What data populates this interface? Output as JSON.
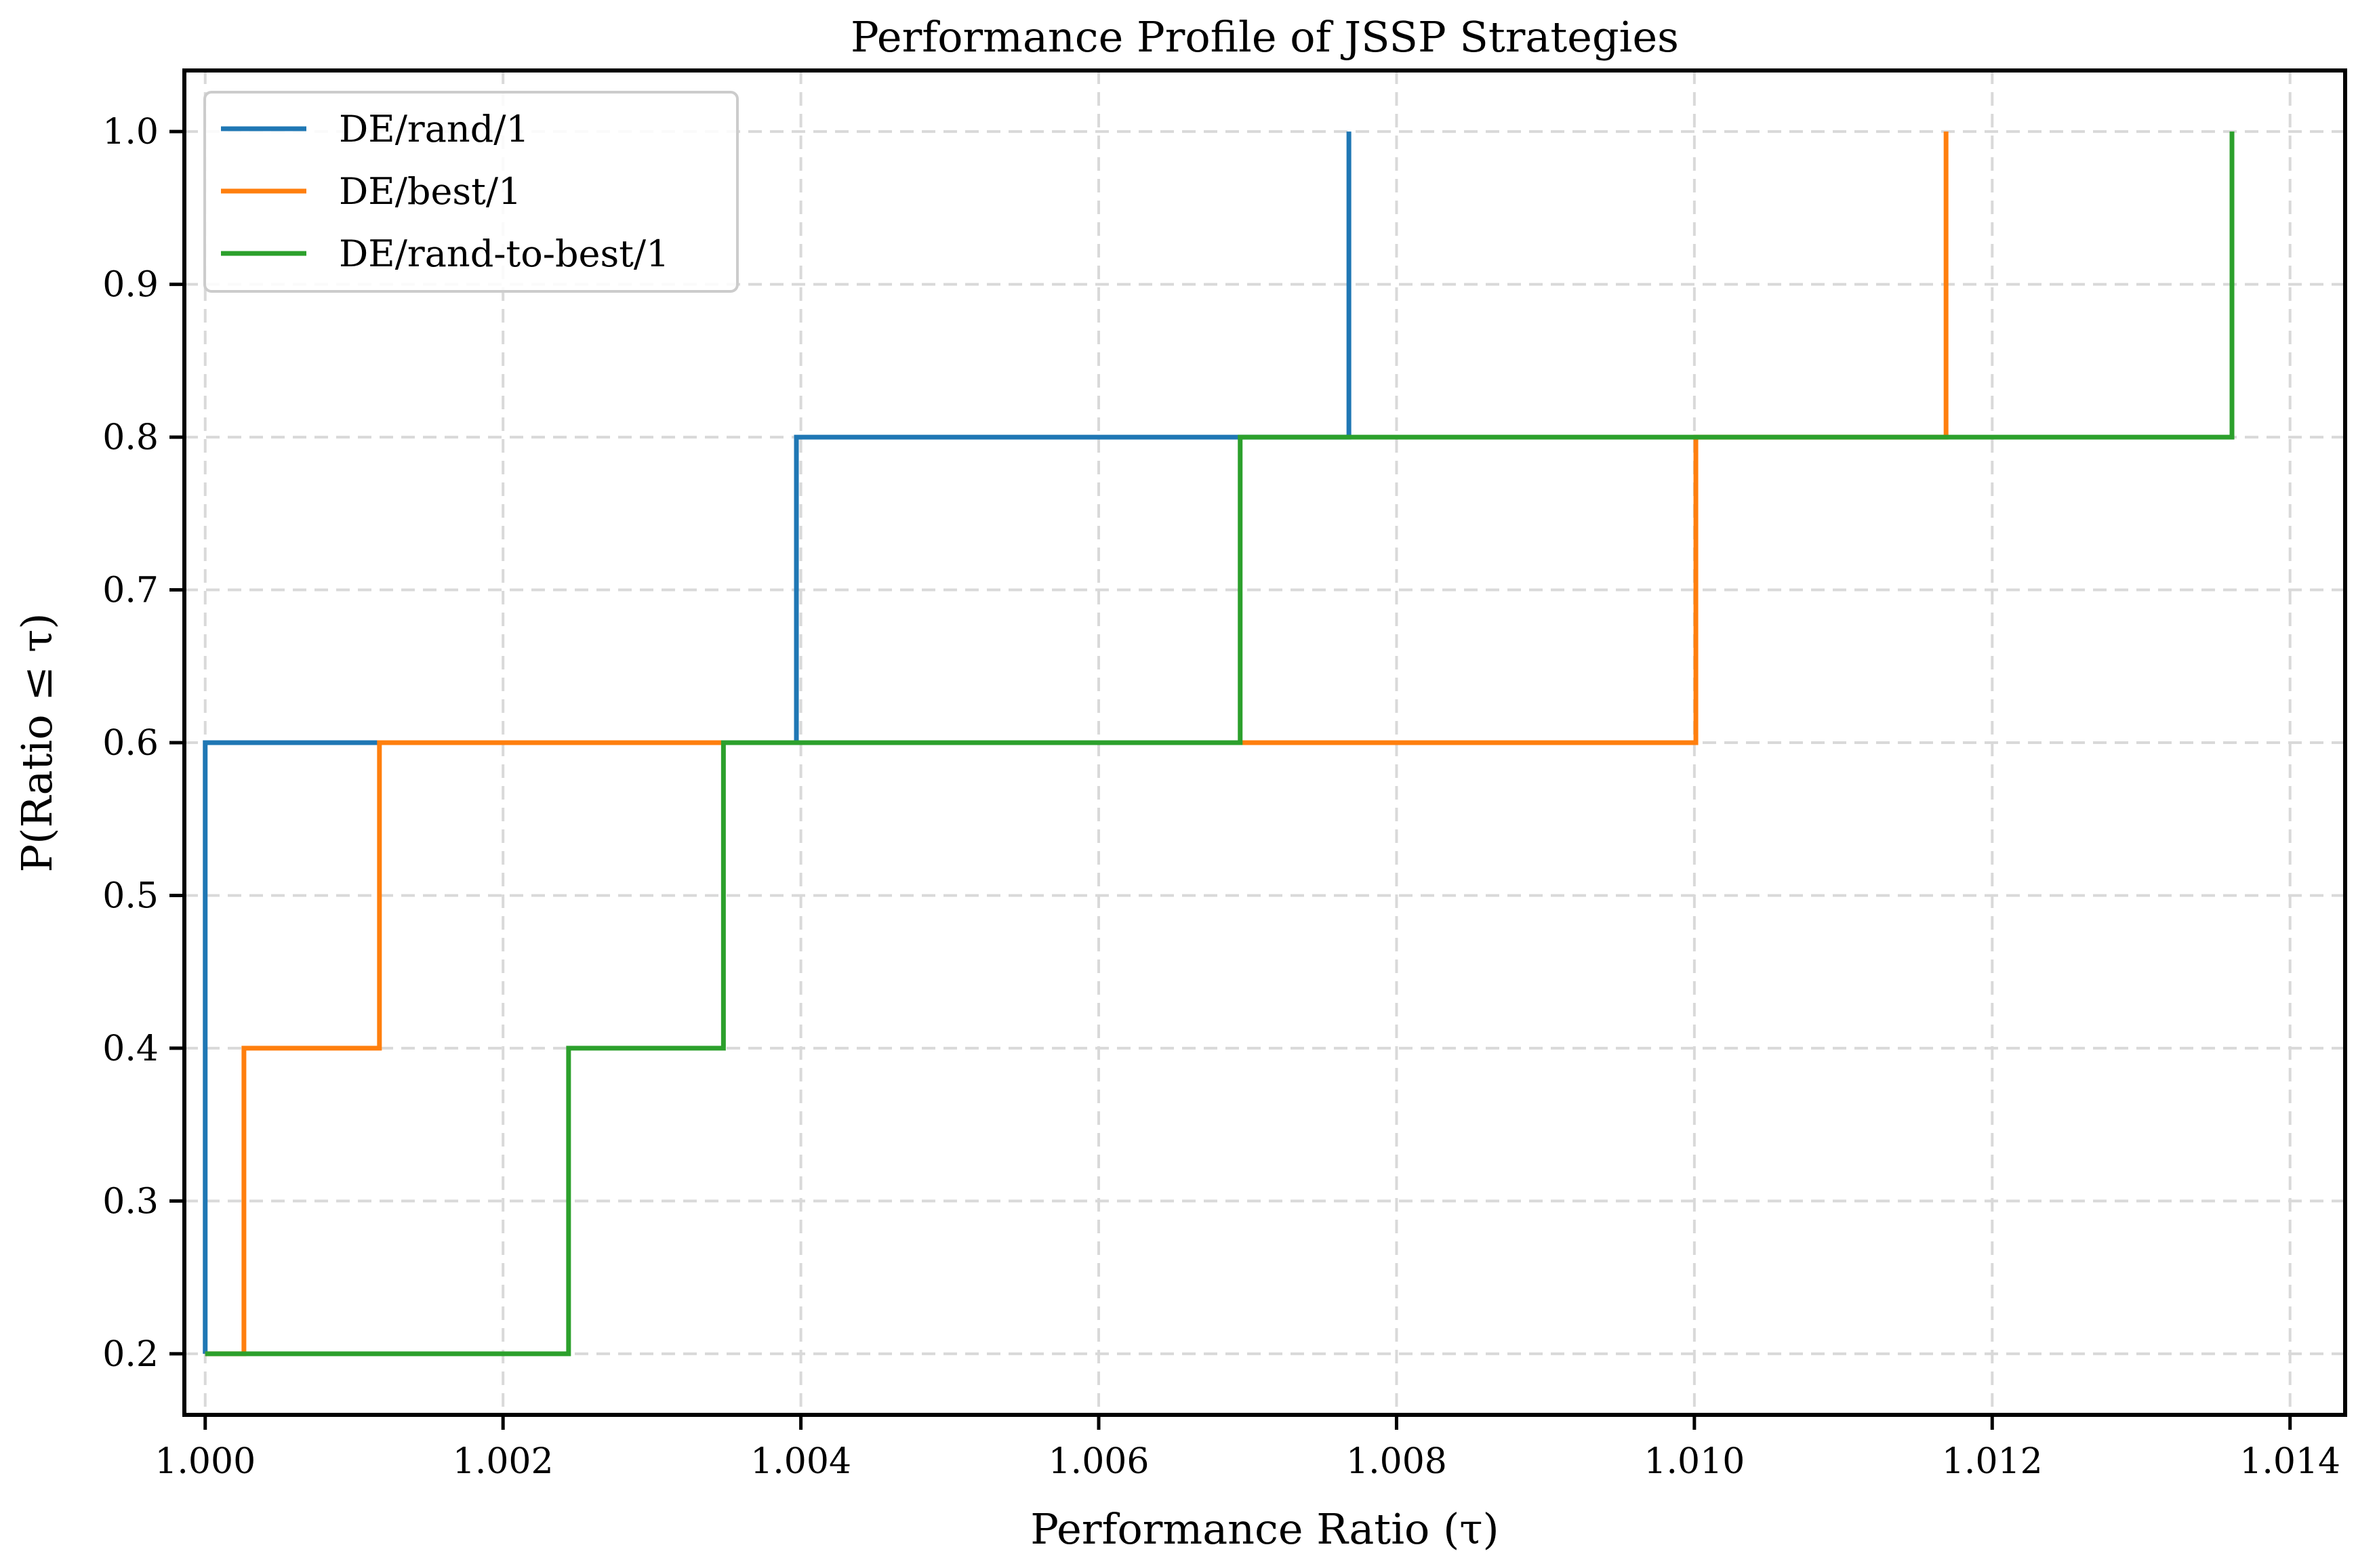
{
  "chart_data": {
    "type": "line",
    "step": true,
    "title": "Performance Profile of JSSP Strategies",
    "xlabel": "Performance Ratio (τ)",
    "ylabel": "P(Ratio ≤ τ)",
    "xlim": [
      0.99986,
      1.01437
    ],
    "ylim": [
      0.16,
      1.04
    ],
    "xticks": [
      1.0,
      1.002,
      1.004,
      1.006,
      1.008,
      1.01,
      1.012,
      1.014
    ],
    "xtick_labels": [
      "1.000",
      "1.002",
      "1.004",
      "1.006",
      "1.008",
      "1.010",
      "1.012",
      "1.014"
    ],
    "yticks": [
      0.2,
      0.3,
      0.4,
      0.5,
      0.6,
      0.7,
      0.8,
      0.9,
      1.0
    ],
    "ytick_labels": [
      "0.2",
      "0.3",
      "0.4",
      "0.5",
      "0.6",
      "0.7",
      "0.8",
      "0.9",
      "1.0"
    ],
    "grid": true,
    "legend_position": "top-left",
    "series": [
      {
        "name": "DE/rand/1",
        "color": "#1f77b4",
        "x": [
          1.0,
          1.0,
          1.00397,
          1.00768
        ],
        "y": [
          0.2,
          0.6,
          0.8,
          1.0
        ]
      },
      {
        "name": "DE/best/1",
        "color": "#ff7f0e",
        "x": [
          1.0,
          1.00026,
          1.00117,
          1.01001,
          1.01169
        ],
        "y": [
          0.2,
          0.4,
          0.6,
          0.8,
          1.0
        ]
      },
      {
        "name": "DE/rand-to-best/1",
        "color": "#2ca02c",
        "x": [
          1.0,
          1.00244,
          1.00348,
          1.00695,
          1.01361
        ],
        "y": [
          0.2,
          0.4,
          0.6,
          0.8,
          1.0
        ]
      }
    ]
  }
}
